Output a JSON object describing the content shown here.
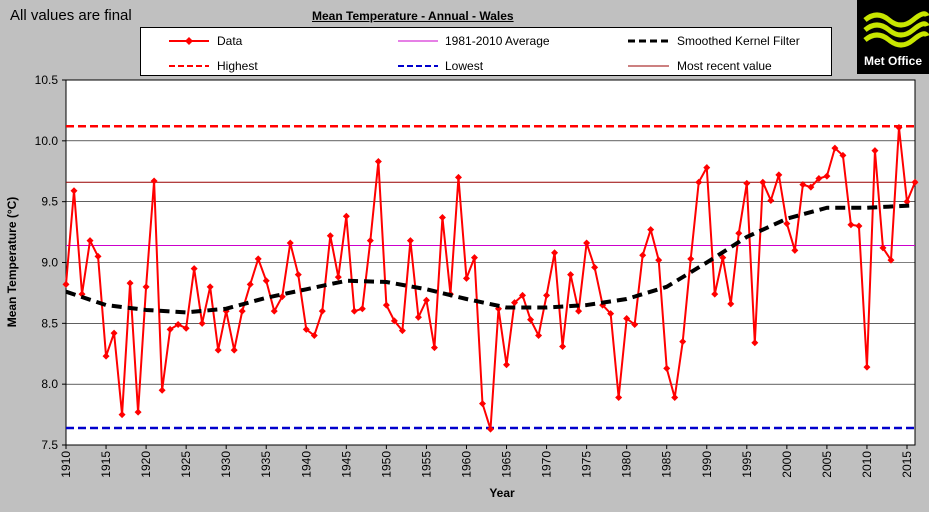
{
  "page": {
    "status_text": "All values are final",
    "logo_text": "Met Office"
  },
  "chart_data": {
    "type": "line",
    "title": "Mean Temperature  - Annual - Wales",
    "xlabel": "Year",
    "ylabel": "Mean Temperature (°C)",
    "xlim": [
      1910,
      2016
    ],
    "ylim": [
      7.5,
      10.5
    ],
    "yticks": [
      "7.5",
      "8.0",
      "8.5",
      "9.0",
      "9.5",
      "10.0",
      "10.5"
    ],
    "xticks": [
      "1910",
      "1915",
      "1920",
      "1925",
      "1930",
      "1935",
      "1940",
      "1945",
      "1950",
      "1955",
      "1960",
      "1965",
      "1970",
      "1975",
      "1980",
      "1985",
      "1990",
      "1995",
      "2000",
      "2005",
      "2010",
      "2015"
    ],
    "grid": "horizontal",
    "legend": [
      {
        "label": "Data",
        "color": "#ff0000",
        "style": "line-marker"
      },
      {
        "label": "1981-2010 Average",
        "color": "#cc00cc",
        "style": "thin"
      },
      {
        "label": "Smoothed Kernel Filter",
        "color": "#000000",
        "style": "dashed-thick"
      },
      {
        "label": "Highest",
        "color": "#ff0000",
        "style": "dashed"
      },
      {
        "label": "Lowest",
        "color": "#0000cc",
        "style": "dashed"
      },
      {
        "label": "Most recent value",
        "color": "#990000",
        "style": "thin"
      }
    ],
    "reference_lines": {
      "average": 9.14,
      "highest": 10.12,
      "lowest": 7.64,
      "most_recent": 9.66
    },
    "series": [
      {
        "name": "Data",
        "color": "#ff0000",
        "x": [
          1910,
          1911,
          1912,
          1913,
          1914,
          1915,
          1916,
          1917,
          1918,
          1919,
          1920,
          1921,
          1922,
          1923,
          1924,
          1925,
          1926,
          1927,
          1928,
          1929,
          1930,
          1931,
          1932,
          1933,
          1934,
          1935,
          1936,
          1937,
          1938,
          1939,
          1940,
          1941,
          1942,
          1943,
          1944,
          1945,
          1946,
          1947,
          1948,
          1949,
          1950,
          1951,
          1952,
          1953,
          1954,
          1955,
          1956,
          1957,
          1958,
          1959,
          1960,
          1961,
          1962,
          1963,
          1964,
          1965,
          1966,
          1967,
          1968,
          1969,
          1970,
          1971,
          1972,
          1973,
          1974,
          1975,
          1976,
          1977,
          1978,
          1979,
          1980,
          1981,
          1982,
          1983,
          1984,
          1985,
          1986,
          1987,
          1988,
          1989,
          1990,
          1991,
          1992,
          1993,
          1994,
          1995,
          1996,
          1997,
          1998,
          1999,
          2000,
          2001,
          2002,
          2003,
          2004,
          2005,
          2006,
          2007,
          2008,
          2009,
          2010,
          2011,
          2012,
          2013,
          2014,
          2015,
          2016
        ],
        "y": [
          8.82,
          9.59,
          8.74,
          9.18,
          9.05,
          8.23,
          8.42,
          7.75,
          8.83,
          7.77,
          8.8,
          9.67,
          7.95,
          8.45,
          8.49,
          8.46,
          8.95,
          8.5,
          8.8,
          8.28,
          8.6,
          8.28,
          8.6,
          8.82,
          9.03,
          8.85,
          8.6,
          8.72,
          9.16,
          8.9,
          8.45,
          8.4,
          8.6,
          9.22,
          8.88,
          9.38,
          8.6,
          8.62,
          9.18,
          9.83,
          8.65,
          8.52,
          8.44,
          9.18,
          8.55,
          8.69,
          8.3,
          9.37,
          8.74,
          9.7,
          8.87,
          9.04,
          7.84,
          7.63,
          8.62,
          8.16,
          8.67,
          8.73,
          8.53,
          8.4,
          8.73,
          9.08,
          8.31,
          8.9,
          8.6,
          9.16,
          8.96,
          8.65,
          8.58,
          7.89,
          8.54,
          8.49,
          9.06,
          9.27,
          9.02,
          8.13,
          7.89,
          8.35,
          9.03,
          9.66,
          9.78,
          8.74,
          9.04,
          8.66,
          9.24,
          9.65,
          8.34,
          9.66,
          9.51,
          9.72,
          9.32,
          9.1,
          9.64,
          9.62,
          9.69,
          9.71,
          9.94,
          9.88,
          9.31,
          9.3,
          8.14,
          9.92,
          9.12,
          9.02,
          10.11,
          9.5,
          9.66
        ]
      },
      {
        "name": "Smoothed Kernel Filter",
        "color": "#000000",
        "x": [
          1910,
          1915,
          1920,
          1925,
          1930,
          1935,
          1940,
          1945,
          1950,
          1955,
          1960,
          1965,
          1970,
          1975,
          1980,
          1985,
          1990,
          1995,
          2000,
          2005,
          2010,
          2016
        ],
        "y": [
          8.76,
          8.65,
          8.61,
          8.59,
          8.62,
          8.71,
          8.78,
          8.85,
          8.84,
          8.78,
          8.7,
          8.63,
          8.63,
          8.65,
          8.7,
          8.8,
          9.0,
          9.21,
          9.36,
          9.45,
          9.45,
          9.47
        ]
      }
    ]
  }
}
